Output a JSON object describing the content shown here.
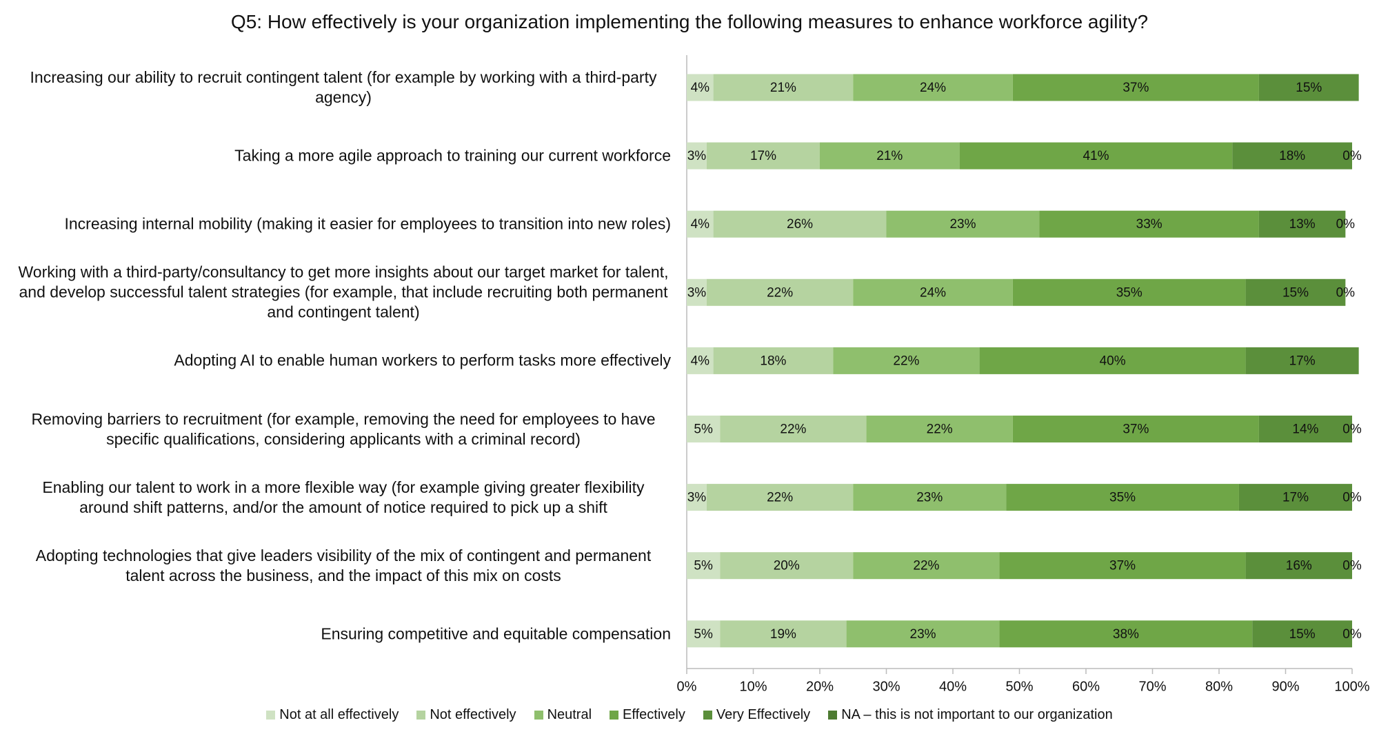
{
  "chart_data": {
    "type": "stacked-barh",
    "title": "Q5: How effectively is your organization implementing the following measures to enhance workforce agility?",
    "categories": [
      "Increasing our ability to recruit contingent talent (for example by working with a third-party agency)",
      "Taking a more agile approach to training our current workforce",
      "Increasing internal mobility (making it easier for employees to transition into new roles)",
      "Working with a third-party/consultancy to get more insights about our target market for talent, and develop successful talent strategies (for example, that include recruiting both permanent and contingent talent)",
      "Adopting AI to enable human workers to perform tasks more effectively",
      "Removing barriers to recruitment (for example, removing the need for employees to have specific qualifications, considering applicants with a criminal record)",
      "Enabling our talent to work in a more flexible way (for example giving greater flexibility around shift patterns, and/or the amount of notice required to pick up a shift",
      "Adopting technologies that give leaders visibility of the mix of contingent and permanent talent across the business, and the impact of this mix on costs",
      "Ensuring competitive and equitable compensation"
    ],
    "series": [
      {
        "name": "Not at all effectively",
        "color": "#cfe2c3",
        "values": [
          4,
          3,
          4,
          3,
          4,
          5,
          3,
          5,
          5
        ],
        "value_labels": [
          "4%",
          "3%",
          "4%",
          "3%",
          "4%",
          "5%",
          "3%",
          "5%",
          "5%"
        ]
      },
      {
        "name": "Not effectively",
        "color": "#b5d3a0",
        "values": [
          21,
          17,
          26,
          22,
          18,
          22,
          22,
          20,
          19
        ],
        "value_labels": [
          "21%",
          "17%",
          "26%",
          "22%",
          "18%",
          "22%",
          "22%",
          "20%",
          "19%"
        ]
      },
      {
        "name": "Neutral",
        "color": "#8fbf6d",
        "values": [
          24,
          21,
          23,
          24,
          22,
          22,
          23,
          22,
          23
        ],
        "value_labels": [
          "24%",
          "21%",
          "23%",
          "24%",
          "22%",
          "22%",
          "23%",
          "22%",
          "23%"
        ]
      },
      {
        "name": "Effectively",
        "color": "#6fa647",
        "values": [
          37,
          41,
          33,
          35,
          40,
          37,
          35,
          37,
          38
        ],
        "value_labels": [
          "37%",
          "41%",
          "33%",
          "35%",
          "40%",
          "37%",
          "35%",
          "37%",
          "38%"
        ]
      },
      {
        "name": "Very Effectively",
        "color": "#5b8f3b",
        "values": [
          15,
          18,
          13,
          15,
          17,
          14,
          17,
          16,
          15
        ],
        "value_labels": [
          "15%",
          "18%",
          "13%",
          "15%",
          "17%",
          "14%",
          "17%",
          "16%",
          "15%"
        ]
      },
      {
        "name": "NA – this is not important to our organization",
        "color": "#4e7b32",
        "values": [
          null,
          0,
          0,
          0,
          null,
          0,
          0,
          0,
          0
        ],
        "value_labels": [
          null,
          "0%",
          "0%",
          "0%",
          null,
          "0%",
          "0%",
          "0%",
          "0%"
        ]
      }
    ],
    "xlim": [
      0,
      100
    ],
    "xticks": [
      {
        "value": 0,
        "label": "0%"
      },
      {
        "value": 10,
        "label": "10%"
      },
      {
        "value": 20,
        "label": "20%"
      },
      {
        "value": 30,
        "label": "30%"
      },
      {
        "value": 40,
        "label": "40%"
      },
      {
        "value": 50,
        "label": "50%"
      },
      {
        "value": 60,
        "label": "60%"
      },
      {
        "value": 70,
        "label": "70%"
      },
      {
        "value": 80,
        "label": "80%"
      },
      {
        "value": 90,
        "label": "90%"
      },
      {
        "value": 100,
        "label": "100%"
      }
    ],
    "legend": "bottom"
  }
}
